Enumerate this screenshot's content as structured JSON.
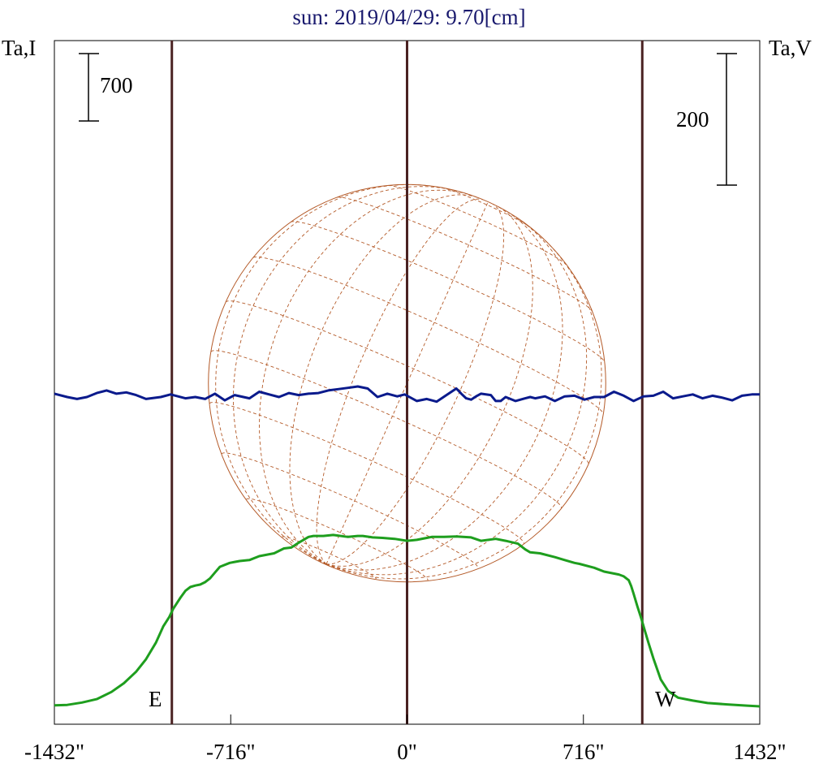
{
  "chart_data": {
    "type": "line",
    "title": "sun: 2019/04/29: 9.70[cm]",
    "ylabel_left": "Ta,I",
    "ylabel_right": "Ta,V",
    "scale_bar_left": "700",
    "scale_bar_right": "200",
    "x_ticks": [
      {
        "value": -1432,
        "label": "-1432\""
      },
      {
        "value": -716,
        "label": "-716\""
      },
      {
        "value": 0,
        "label": "0\""
      },
      {
        "value": 716,
        "label": "716\""
      },
      {
        "value": 1432,
        "label": "1432\""
      }
    ],
    "xlim": [
      -1432,
      1432
    ],
    "limb_markers": [
      -955,
      0,
      955
    ],
    "limb_labels": {
      "east": "E",
      "west": "W"
    },
    "colors": {
      "title": "#1a1a6e",
      "stokes_i": "#1e9e1e",
      "stokes_v": "#0a1a8c",
      "limb_lines": "#4a2222",
      "solar_disk": "#b45a28",
      "grid": "#b45a28",
      "axis": "#000000"
    },
    "series": [
      {
        "name": "I",
        "x": [
          -1432,
          -1380,
          -1320,
          -1260,
          -1200,
          -1150,
          -1100,
          -1060,
          -1020,
          -990,
          -965,
          -950,
          -935,
          -920,
          -900,
          -880,
          -860,
          -840,
          -820,
          -800,
          -780,
          -760,
          -720,
          -700,
          -680,
          -660,
          -640,
          -600,
          -540,
          -500,
          -470,
          -440,
          -400,
          -380,
          -340,
          -300,
          -240,
          -200,
          -180,
          -140,
          -100,
          -50,
          0,
          40,
          80,
          100,
          150,
          200,
          260,
          300,
          360,
          400,
          450,
          480,
          500,
          540,
          600,
          640,
          680,
          700,
          760,
          800,
          860,
          880,
          900,
          910,
          920,
          935,
          950,
          965,
          980,
          1000,
          1030,
          1060,
          1100,
          1160,
          1220,
          1300,
          1380,
          1432
        ],
        "y": [
          10,
          15,
          40,
          75,
          150,
          240,
          360,
          490,
          660,
          830,
          930,
          1010,
          1070,
          1130,
          1200,
          1240,
          1255,
          1265,
          1290,
          1330,
          1390,
          1450,
          1490,
          1500,
          1510,
          1515,
          1520,
          1560,
          1590,
          1640,
          1650,
          1700,
          1760,
          1770,
          1770,
          1780,
          1760,
          1770,
          1770,
          1755,
          1750,
          1740,
          1720,
          1730,
          1750,
          1760,
          1760,
          1765,
          1755,
          1720,
          1740,
          1720,
          1690,
          1630,
          1600,
          1590,
          1550,
          1520,
          1490,
          1480,
          1440,
          1400,
          1370,
          1350,
          1310,
          1250,
          1170,
          1040,
          920,
          790,
          660,
          500,
          280,
          160,
          90,
          60,
          35,
          20,
          8,
          0
        ]
      },
      {
        "name": "V",
        "x": [
          -1432,
          -1380,
          -1340,
          -1300,
          -1260,
          -1220,
          -1180,
          -1140,
          -1100,
          -1060,
          -1000,
          -960,
          -900,
          -860,
          -820,
          -780,
          -740,
          -700,
          -640,
          -600,
          -560,
          -520,
          -480,
          -440,
          -400,
          -360,
          -320,
          -280,
          -240,
          -200,
          -160,
          -120,
          -80,
          -40,
          -10,
          0,
          40,
          80,
          120,
          160,
          200,
          220,
          240,
          260,
          280,
          300,
          340,
          360,
          380,
          400,
          440,
          480,
          500,
          520,
          560,
          600,
          640,
          680,
          720,
          760,
          800,
          840,
          880,
          920,
          960,
          1000,
          1040,
          1080,
          1120,
          1160,
          1200,
          1240,
          1280,
          1320,
          1360,
          1400,
          1432
        ],
        "y": [
          5,
          0,
          -3,
          0,
          6,
          10,
          5,
          7,
          3,
          -3,
          0,
          4,
          -2,
          0,
          -3,
          5,
          -5,
          3,
          -2,
          8,
          4,
          0,
          6,
          3,
          5,
          6,
          10,
          12,
          14,
          16,
          13,
          0,
          5,
          1,
          4,
          2,
          -6,
          -3,
          -7,
          3,
          13,
          5,
          -2,
          -4,
          1,
          5,
          3,
          -6,
          -6,
          0,
          -6,
          -2,
          0,
          -2,
          1,
          -6,
          1,
          2,
          -4,
          0,
          0,
          8,
          2,
          -6,
          1,
          2,
          8,
          -2,
          1,
          4,
          -2,
          2,
          -1,
          -5,
          2,
          4,
          4
        ]
      }
    ]
  }
}
